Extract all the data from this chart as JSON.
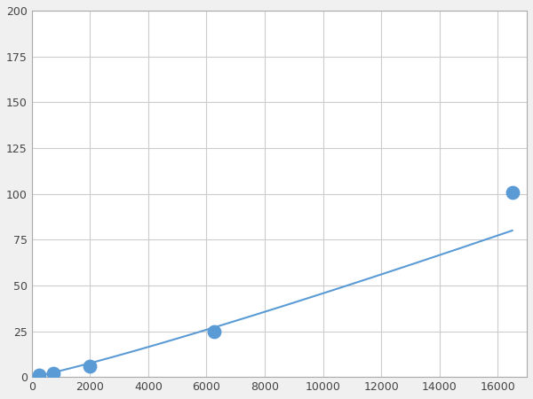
{
  "x": [
    250,
    750,
    2000,
    6250,
    16500
  ],
  "y": [
    1,
    2,
    6,
    25,
    101
  ],
  "line_color": "#5b9bd5",
  "marker_color": "#5b9bd5",
  "marker_size": 6,
  "xlim": [
    0,
    17000
  ],
  "ylim": [
    0,
    200
  ],
  "xticks": [
    0,
    2000,
    4000,
    6000,
    8000,
    10000,
    12000,
    14000,
    16000
  ],
  "yticks": [
    0,
    25,
    50,
    75,
    100,
    125,
    150,
    175,
    200
  ],
  "grid_color": "#cccccc",
  "background_color": "#ffffff",
  "figure_background": "#f0f0f0"
}
